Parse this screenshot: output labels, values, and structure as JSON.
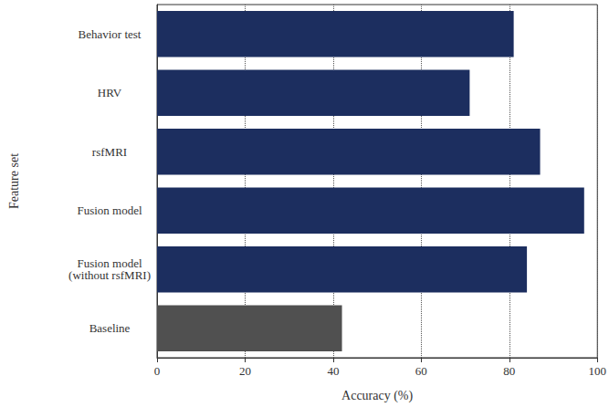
{
  "chart_data": {
    "type": "bar",
    "orientation": "horizontal",
    "categories": [
      "Behavior test",
      "HRV",
      "rsfMRI",
      "Fusion model",
      "Fusion model\n(without rsfMRI)",
      "Baseline"
    ],
    "values": [
      81,
      71,
      87,
      97,
      84,
      42
    ],
    "colors": [
      "#1c2e5f",
      "#1c2e5f",
      "#1c2e5f",
      "#1c2e5f",
      "#1c2e5f",
      "#505050"
    ],
    "x_label": "Accuracy (%)",
    "y_label": "Feature set",
    "xlim": [
      0,
      100
    ],
    "xticks": [
      0,
      20,
      40,
      60,
      80,
      100
    ],
    "grid": true
  }
}
